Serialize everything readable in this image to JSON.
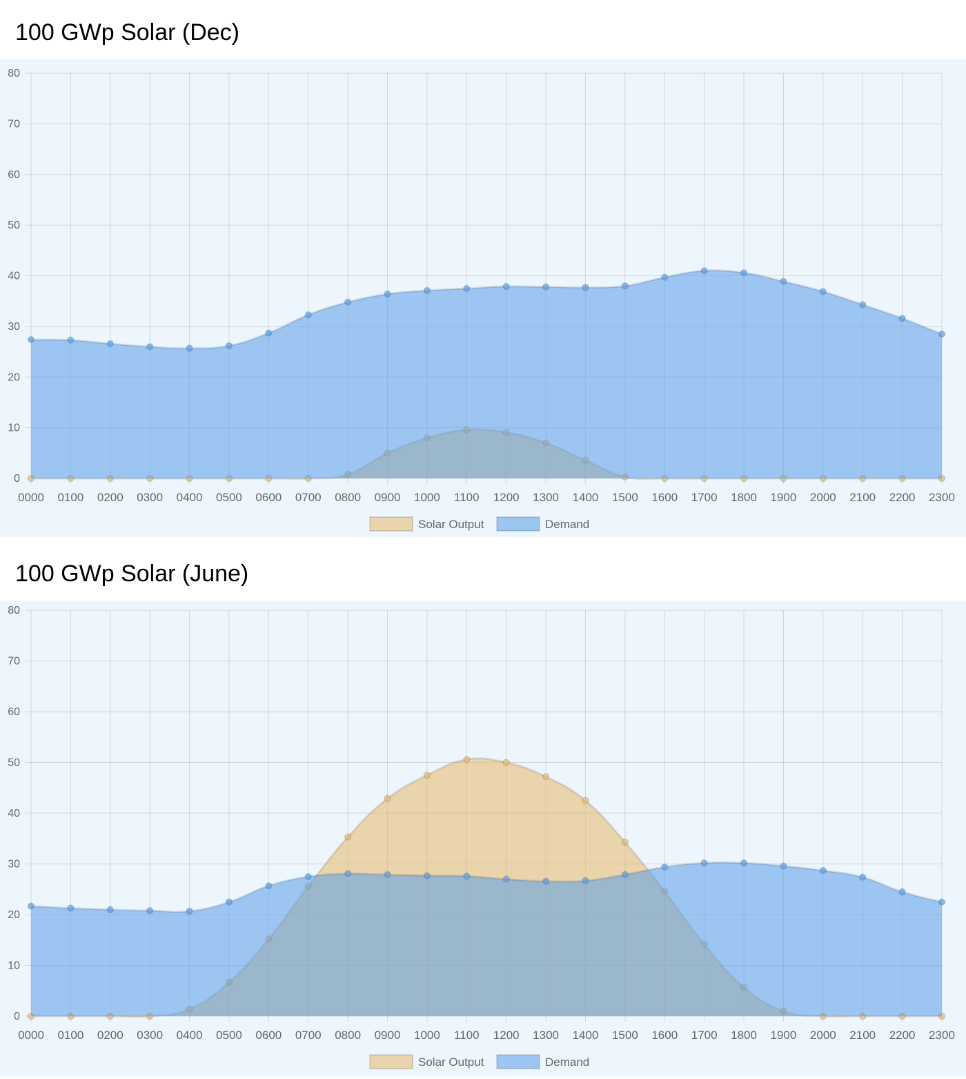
{
  "charts": [
    {
      "title": "100 GWp Solar (Dec)",
      "chart_data": {
        "type": "area",
        "x": [
          "0000",
          "0100",
          "0200",
          "0300",
          "0400",
          "0500",
          "0600",
          "0700",
          "0800",
          "0900",
          "1000",
          "1100",
          "1200",
          "1300",
          "1400",
          "1500",
          "1600",
          "1700",
          "1800",
          "1900",
          "2000",
          "2100",
          "2200",
          "2300"
        ],
        "ylim": [
          0,
          80
        ],
        "yticks": [
          0,
          10,
          20,
          30,
          40,
          50,
          60,
          70,
          80
        ],
        "grid": true,
        "legend_position": "bottom",
        "series": [
          {
            "name": "Solar Output",
            "color": "#e8b86a",
            "values": [
              0,
              0,
              0,
              0,
              0,
              0,
              0,
              0,
              0.8,
              5.0,
              8.0,
              9.6,
              9.1,
              7.0,
              3.6,
              0.3,
              0,
              0,
              0,
              0,
              0,
              0,
              0,
              0
            ]
          },
          {
            "name": "Demand",
            "color": "#5a9ee8",
            "values": [
              27.4,
              27.3,
              26.6,
              26.0,
              25.7,
              26.2,
              28.7,
              32.3,
              34.8,
              36.4,
              37.1,
              37.5,
              37.9,
              37.8,
              37.7,
              38.0,
              39.7,
              41.0,
              40.6,
              38.9,
              36.9,
              34.3,
              31.6,
              28.5
            ]
          }
        ]
      }
    },
    {
      "title": "100 GWp Solar (June)",
      "chart_data": {
        "type": "area",
        "x": [
          "0000",
          "0100",
          "0200",
          "0300",
          "0400",
          "0500",
          "0600",
          "0700",
          "0800",
          "0900",
          "1000",
          "1100",
          "1200",
          "1300",
          "1400",
          "1500",
          "1600",
          "1700",
          "1800",
          "1900",
          "2000",
          "2100",
          "2200",
          "2300"
        ],
        "ylim": [
          0,
          80
        ],
        "yticks": [
          0,
          10,
          20,
          30,
          40,
          50,
          60,
          70,
          80
        ],
        "grid": true,
        "legend_position": "bottom",
        "series": [
          {
            "name": "Solar Output",
            "color": "#e8b86a",
            "values": [
              0,
              0,
              0,
              0,
              1.4,
              6.7,
              15.2,
              25.6,
              35.3,
              42.9,
              47.5,
              50.6,
              50.0,
              47.2,
              42.5,
              34.3,
              24.6,
              14.2,
              5.7,
              1.0,
              0,
              0,
              0,
              0
            ]
          },
          {
            "name": "Demand",
            "color": "#5a9ee8",
            "values": [
              21.7,
              21.3,
              21.0,
              20.8,
              20.7,
              22.5,
              25.7,
              27.5,
              28.1,
              27.9,
              27.7,
              27.6,
              27.0,
              26.6,
              26.7,
              27.9,
              29.4,
              30.2,
              30.2,
              29.6,
              28.7,
              27.4,
              24.5,
              22.5
            ]
          }
        ]
      }
    }
  ]
}
